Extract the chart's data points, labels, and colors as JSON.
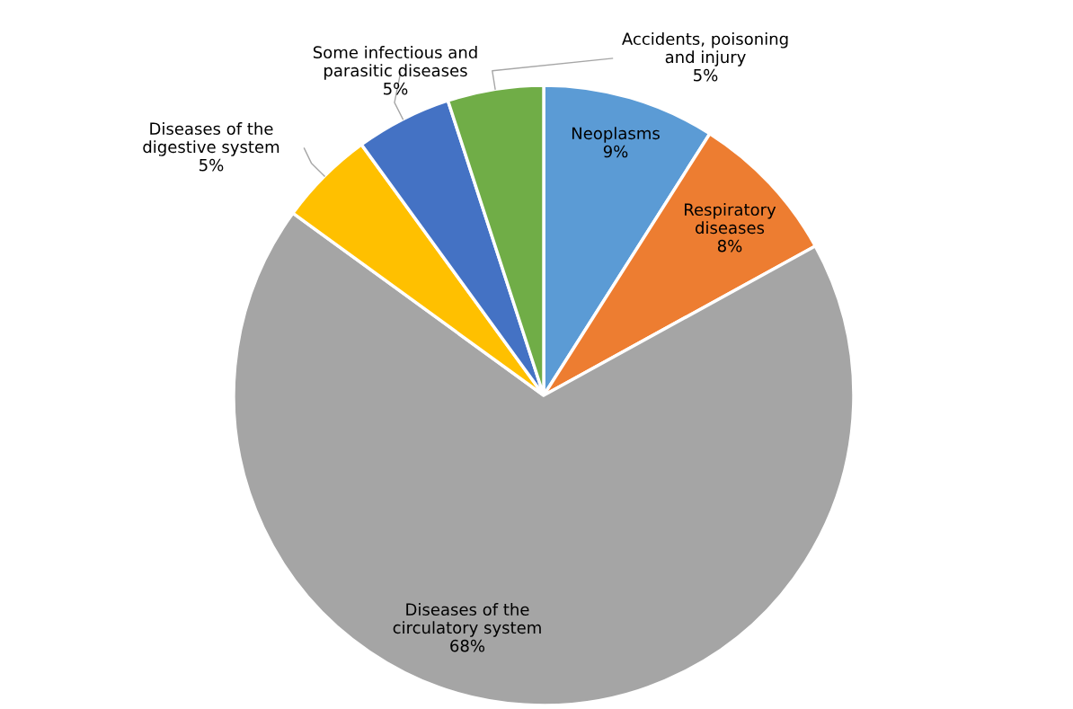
{
  "chart_data": {
    "type": "pie",
    "categories": [
      "Neoplasms",
      "Respiratory\ndiseases",
      "Diseases of the\ncirculatory system",
      "Diseases of the\ndigestive system",
      "Some infectious and\nparasitic diseases",
      "Accidents, poisoning\nand injury"
    ],
    "values": [
      9,
      8,
      68,
      5,
      5,
      5
    ],
    "value_labels": [
      "9%",
      "8%",
      "68%",
      "5%",
      "5%",
      "5%"
    ],
    "colors": [
      "#5b9bd5",
      "#ed7d31",
      "#a5a5a5",
      "#ffc000",
      "#4472c4",
      "#70ad47"
    ],
    "legend": false
  }
}
